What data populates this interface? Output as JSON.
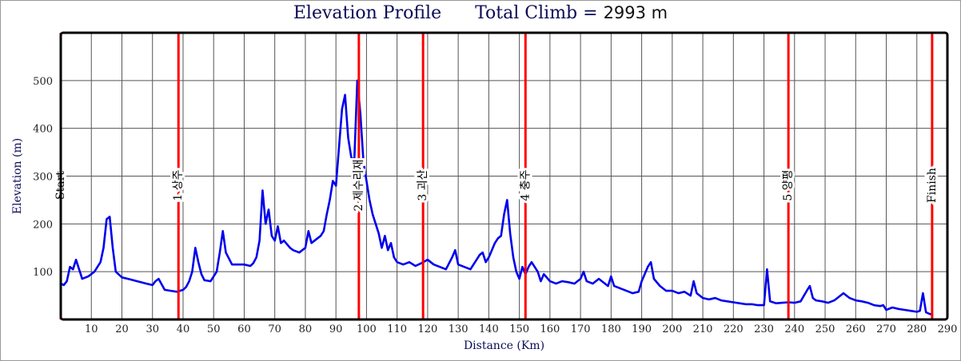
{
  "header": {
    "title": "Elevation Profile",
    "climb_label": "Total Climb = ",
    "climb_value": "2993 m"
  },
  "colors": {
    "line": "#0000ee",
    "marker": "#ff0000",
    "grid": "#555555",
    "title": "#0b0b55"
  },
  "chart_data": {
    "type": "line",
    "title": "Elevation Profile",
    "xlabel": "Distance (Km)",
    "ylabel": "Elevation (m)",
    "xlim": [
      0,
      290
    ],
    "ylim": [
      0,
      600
    ],
    "x_ticks": [
      10,
      20,
      30,
      40,
      50,
      60,
      70,
      80,
      90,
      100,
      110,
      120,
      130,
      140,
      150,
      160,
      170,
      180,
      190,
      200,
      210,
      220,
      230,
      240,
      250,
      260,
      270,
      280,
      290
    ],
    "y_ticks": [
      100,
      200,
      300,
      400,
      500
    ],
    "grid": true,
    "series": [
      {
        "name": "Elevation",
        "x": [
          0,
          1,
          2,
          3,
          4,
          5,
          7,
          9,
          11,
          13,
          14,
          15,
          16,
          17,
          18,
          20,
          22,
          25,
          28,
          30,
          31,
          32,
          34,
          36,
          38,
          40,
          41,
          42,
          43,
          44,
          45,
          46,
          47,
          49,
          51,
          52,
          53,
          54,
          56,
          58,
          60,
          62,
          63,
          64,
          65,
          66,
          67,
          68,
          69,
          70,
          71,
          72,
          73,
          75,
          76,
          78,
          80,
          81,
          82,
          83,
          85,
          86,
          87,
          88,
          89,
          90,
          91,
          92,
          93,
          94,
          95,
          96,
          97,
          98,
          99,
          100,
          101,
          102,
          103,
          104,
          105,
          106,
          107,
          108,
          109,
          110,
          112,
          114,
          116,
          118,
          120,
          122,
          124,
          126,
          128,
          129,
          130,
          132,
          134,
          136,
          137,
          138,
          139,
          140,
          141,
          142,
          143,
          144,
          145,
          146,
          147,
          148,
          149,
          150,
          151,
          152,
          153,
          154,
          156,
          157,
          158,
          160,
          162,
          164,
          166,
          168,
          170,
          171,
          172,
          174,
          176,
          178,
          179,
          180,
          181,
          183,
          185,
          187,
          189,
          190,
          191,
          192,
          193,
          194,
          196,
          198,
          200,
          202,
          204,
          206,
          207,
          208,
          210,
          212,
          214,
          216,
          218,
          220,
          222,
          224,
          226,
          228,
          230,
          231,
          232,
          234,
          236,
          238,
          240,
          242,
          244,
          245,
          246,
          247,
          249,
          251,
          253,
          255,
          256,
          258,
          260,
          262,
          264,
          266,
          268,
          269,
          270,
          272,
          274,
          276,
          278,
          280,
          281,
          282,
          283,
          284,
          285
        ],
        "y": [
          75,
          72,
          80,
          110,
          105,
          125,
          85,
          90,
          100,
          120,
          150,
          210,
          215,
          150,
          100,
          88,
          85,
          80,
          75,
          72,
          80,
          85,
          62,
          60,
          58,
          62,
          68,
          80,
          100,
          150,
          120,
          95,
          82,
          80,
          100,
          140,
          185,
          140,
          115,
          115,
          115,
          112,
          118,
          130,
          165,
          270,
          200,
          230,
          175,
          165,
          195,
          160,
          165,
          150,
          145,
          140,
          150,
          185,
          160,
          165,
          175,
          185,
          220,
          250,
          290,
          280,
          360,
          440,
          470,
          380,
          340,
          330,
          500,
          430,
          330,
          290,
          250,
          220,
          200,
          180,
          150,
          175,
          145,
          160,
          130,
          120,
          115,
          120,
          112,
          118,
          125,
          115,
          110,
          105,
          130,
          145,
          115,
          110,
          105,
          125,
          135,
          140,
          120,
          130,
          145,
          160,
          170,
          175,
          220,
          250,
          180,
          130,
          100,
          85,
          110,
          95,
          110,
          120,
          100,
          80,
          95,
          80,
          75,
          80,
          78,
          75,
          85,
          100,
          80,
          75,
          85,
          75,
          70,
          90,
          70,
          65,
          60,
          55,
          58,
          80,
          95,
          110,
          120,
          85,
          70,
          60,
          60,
          55,
          58,
          50,
          80,
          55,
          45,
          42,
          45,
          40,
          38,
          36,
          34,
          32,
          32,
          30,
          30,
          105,
          38,
          34,
          35,
          36,
          35,
          38,
          60,
          70,
          45,
          40,
          38,
          35,
          40,
          50,
          55,
          45,
          40,
          38,
          35,
          30,
          28,
          30,
          20,
          25,
          22,
          20,
          18,
          16,
          18,
          55,
          15,
          12,
          10
        ]
      }
    ],
    "markers": [
      {
        "x": 0,
        "label": "Start"
      },
      {
        "x": 38.5,
        "label": "1 상주"
      },
      {
        "x": 97.5,
        "label": "2 제수리재"
      },
      {
        "x": 118.5,
        "label": "3 괴산"
      },
      {
        "x": 152,
        "label": "4 충주"
      },
      {
        "x": 238,
        "label": "5 양평"
      },
      {
        "x": 285,
        "label": "Finish"
      }
    ]
  }
}
